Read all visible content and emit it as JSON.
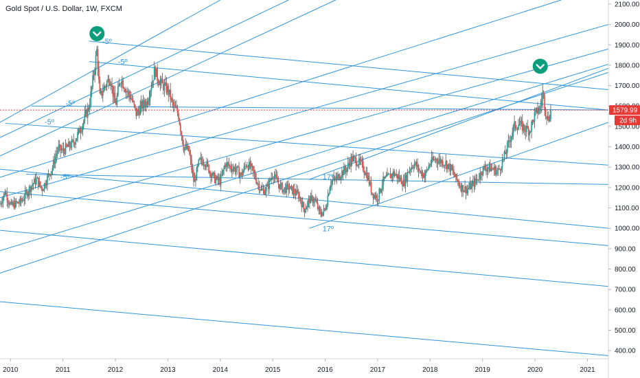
{
  "chart_data": {
    "type": "candlestick",
    "title": "Gold Spot / U.S. Dollar, 1W, FXCM",
    "x_ticks": [
      "2010",
      "2011",
      "2012",
      "2013",
      "2014",
      "2015",
      "2016",
      "2017",
      "2018",
      "2019",
      "2020",
      "2021"
    ],
    "y_ticks": [
      "2100.00",
      "2000.00",
      "1900.00",
      "1800.00",
      "1700.00",
      "1600.00",
      "1500.00",
      "1400.00",
      "1300.00",
      "1200.00",
      "1100.00",
      "1000.00",
      "900.00",
      "800.00",
      "700.00",
      "600.00",
      "500.00",
      "400.00"
    ],
    "x_range": [
      2009.8,
      2021.4
    ],
    "y_range": [
      360,
      2120
    ],
    "last_price": "1579.99",
    "last_price_value": 1579.99,
    "countdown": "2d 9h",
    "colors": {
      "up": "#26a69a",
      "down": "#ef5350",
      "wick": "#555555",
      "trendline": "#2f95dc",
      "price_line": "#e53935",
      "marker": "#0b9e7d"
    },
    "price_path": [
      [
        2009.8,
        1120
      ],
      [
        2009.9,
        1180
      ],
      [
        2010.0,
        1110
      ],
      [
        2010.2,
        1130
      ],
      [
        2010.4,
        1210
      ],
      [
        2010.5,
        1240
      ],
      [
        2010.6,
        1190
      ],
      [
        2010.8,
        1300
      ],
      [
        2010.9,
        1390
      ],
      [
        2011.0,
        1380
      ],
      [
        2011.2,
        1420
      ],
      [
        2011.3,
        1470
      ],
      [
        2011.4,
        1530
      ],
      [
        2011.5,
        1600
      ],
      [
        2011.6,
        1780
      ],
      [
        2011.65,
        1880
      ],
      [
        2011.7,
        1640
      ],
      [
        2011.8,
        1700
      ],
      [
        2011.9,
        1740
      ],
      [
        2012.0,
        1600
      ],
      [
        2012.1,
        1740
      ],
      [
        2012.2,
        1680
      ],
      [
        2012.3,
        1640
      ],
      [
        2012.4,
        1560
      ],
      [
        2012.5,
        1600
      ],
      [
        2012.6,
        1620
      ],
      [
        2012.7,
        1720
      ],
      [
        2012.75,
        1780
      ],
      [
        2012.8,
        1740
      ],
      [
        2012.9,
        1700
      ],
      [
        2013.0,
        1680
      ],
      [
        2013.1,
        1600
      ],
      [
        2013.2,
        1560
      ],
      [
        2013.3,
        1400
      ],
      [
        2013.4,
        1380
      ],
      [
        2013.5,
        1220
      ],
      [
        2013.6,
        1330
      ],
      [
        2013.7,
        1330
      ],
      [
        2013.8,
        1280
      ],
      [
        2013.9,
        1240
      ],
      [
        2014.0,
        1230
      ],
      [
        2014.1,
        1320
      ],
      [
        2014.2,
        1300
      ],
      [
        2014.3,
        1290
      ],
      [
        2014.4,
        1260
      ],
      [
        2014.5,
        1320
      ],
      [
        2014.6,
        1290
      ],
      [
        2014.7,
        1230
      ],
      [
        2014.8,
        1180
      ],
      [
        2014.9,
        1200
      ],
      [
        2015.0,
        1270
      ],
      [
        2015.1,
        1220
      ],
      [
        2015.2,
        1190
      ],
      [
        2015.3,
        1200
      ],
      [
        2015.4,
        1180
      ],
      [
        2015.5,
        1160
      ],
      [
        2015.6,
        1090
      ],
      [
        2015.7,
        1140
      ],
      [
        2015.8,
        1140
      ],
      [
        2015.9,
        1070
      ],
      [
        2016.0,
        1090
      ],
      [
        2016.1,
        1230
      ],
      [
        2016.2,
        1240
      ],
      [
        2016.3,
        1270
      ],
      [
        2016.4,
        1290
      ],
      [
        2016.5,
        1340
      ],
      [
        2016.6,
        1330
      ],
      [
        2016.7,
        1310
      ],
      [
        2016.8,
        1260
      ],
      [
        2016.9,
        1170
      ],
      [
        2017.0,
        1150
      ],
      [
        2017.1,
        1230
      ],
      [
        2017.2,
        1250
      ],
      [
        2017.3,
        1270
      ],
      [
        2017.4,
        1250
      ],
      [
        2017.5,
        1220
      ],
      [
        2017.6,
        1290
      ],
      [
        2017.7,
        1320
      ],
      [
        2017.8,
        1280
      ],
      [
        2017.9,
        1260
      ],
      [
        2018.0,
        1320
      ],
      [
        2018.1,
        1340
      ],
      [
        2018.2,
        1330
      ],
      [
        2018.3,
        1320
      ],
      [
        2018.4,
        1290
      ],
      [
        2018.5,
        1240
      ],
      [
        2018.6,
        1200
      ],
      [
        2018.7,
        1190
      ],
      [
        2018.8,
        1210
      ],
      [
        2018.9,
        1240
      ],
      [
        2019.0,
        1290
      ],
      [
        2019.1,
        1300
      ],
      [
        2019.2,
        1290
      ],
      [
        2019.3,
        1280
      ],
      [
        2019.4,
        1340
      ],
      [
        2019.5,
        1420
      ],
      [
        2019.6,
        1500
      ],
      [
        2019.7,
        1510
      ],
      [
        2019.8,
        1490
      ],
      [
        2019.9,
        1480
      ],
      [
        2020.0,
        1560
      ],
      [
        2020.1,
        1590
      ],
      [
        2020.15,
        1670
      ],
      [
        2020.2,
        1580
      ],
      [
        2020.25,
        1530
      ],
      [
        2020.3,
        1579.99
      ]
    ],
    "annotations": [
      {
        "text": "-5º",
        "x": 2011.75,
        "y": 1905
      },
      {
        "text": "-5º",
        "x": 2012.05,
        "y": 1805
      },
      {
        "text": "-5º",
        "x": 2011.05,
        "y": 1600
      },
      {
        "text": "-5º",
        "x": 2010.65,
        "y": 1510
      },
      {
        "text": "-5º",
        "x": 2010.95,
        "y": 1240
      },
      {
        "text": "17º",
        "x": 2015.95,
        "y": 1240
      },
      {
        "text": "17º",
        "x": 2015.95,
        "y": 985
      }
    ],
    "markers": [
      {
        "x": 2011.65,
        "y": 1955
      },
      {
        "x": 2020.1,
        "y": 1795
      }
    ],
    "trendlines": [
      {
        "x1": 2011.5,
        "y1": 1918,
        "x2": 2021.4,
        "y2": 1680
      },
      {
        "x1": 2011.5,
        "y1": 1818,
        "x2": 2021.4,
        "y2": 1580
      },
      {
        "x1": 2010.4,
        "y1": 1600,
        "x2": 2021.4,
        "y2": 1580
      },
      {
        "x1": 2009.9,
        "y1": 1515,
        "x2": 2021.4,
        "y2": 1310
      },
      {
        "x1": 2010.3,
        "y1": 1265,
        "x2": 2021.4,
        "y2": 1215
      },
      {
        "x1": 2009.8,
        "y1": 1290,
        "x2": 2021.4,
        "y2": 1000
      },
      {
        "x1": 2009.8,
        "y1": 1180,
        "x2": 2021.4,
        "y2": 915
      },
      {
        "x1": 2009.8,
        "y1": 990,
        "x2": 2021.4,
        "y2": 715
      },
      {
        "x1": 2009.8,
        "y1": 640,
        "x2": 2021.4,
        "y2": 375
      },
      {
        "x1": 2009.8,
        "y1": 1520,
        "x2": 2014.0,
        "y2": 2120
      },
      {
        "x1": 2009.8,
        "y1": 1445,
        "x2": 2015.3,
        "y2": 2120
      },
      {
        "x1": 2009.8,
        "y1": 1355,
        "x2": 2016.2,
        "y2": 2120
      },
      {
        "x1": 2009.8,
        "y1": 1250,
        "x2": 2020.5,
        "y2": 2120
      },
      {
        "x1": 2009.8,
        "y1": 1150,
        "x2": 2021.4,
        "y2": 2000
      },
      {
        "x1": 2009.8,
        "y1": 1040,
        "x2": 2021.4,
        "y2": 1880
      },
      {
        "x1": 2009.8,
        "y1": 890,
        "x2": 2021.4,
        "y2": 1805
      },
      {
        "x1": 2009.8,
        "y1": 780,
        "x2": 2021.4,
        "y2": 1765
      },
      {
        "x1": 2015.7,
        "y1": 1240,
        "x2": 2021.4,
        "y2": 1785
      },
      {
        "x1": 2015.7,
        "y1": 1000,
        "x2": 2021.4,
        "y2": 1520
      }
    ]
  }
}
